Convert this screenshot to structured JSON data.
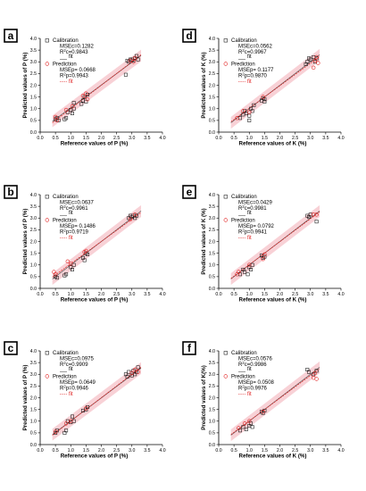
{
  "chart_data": [
    {
      "type": "scatter",
      "panel_label": "a",
      "xlabel": "Reference values of P (%)",
      "ylabel": "Predicted values of P (%)",
      "xlim": [
        0,
        4
      ],
      "ylim": [
        0,
        4
      ],
      "xticks": [
        "0.0",
        "0.5",
        "1.0",
        "1.5",
        "2.0",
        "2.5",
        "3.0",
        "3.5",
        "4.0"
      ],
      "yticks": [
        "0.0",
        "0.5",
        "1.0",
        "1.5",
        "2.0",
        "2.5",
        "3.0",
        "3.5",
        "4.0"
      ],
      "legend_position": "top-left",
      "legend": {
        "calibration": "Calibration",
        "prediction": "Prediction",
        "fit": "fit",
        "mse_c": "MSEc=0.1282",
        "r2_c": "R²c=0.9843",
        "mse_p": "MSEp= 0.0668",
        "r2_p": "R²p=0.9943"
      },
      "fit_calibration": {
        "slope": 0.97,
        "intercept": 0.07
      },
      "fit_prediction": {
        "slope": 1.0,
        "intercept": 0.0
      },
      "band_halfwidth": 0.25,
      "calibration": [
        [
          0.5,
          0.55
        ],
        [
          0.55,
          0.6
        ],
        [
          0.6,
          0.5
        ],
        [
          0.8,
          0.55
        ],
        [
          0.85,
          0.6
        ],
        [
          0.9,
          0.85
        ],
        [
          1.0,
          0.95
        ],
        [
          1.05,
          0.8
        ],
        [
          1.1,
          1.0
        ],
        [
          1.1,
          1.25
        ],
        [
          1.35,
          1.2
        ],
        [
          1.4,
          1.35
        ],
        [
          1.45,
          1.5
        ],
        [
          1.5,
          1.3
        ],
        [
          1.55,
          1.6
        ],
        [
          2.8,
          2.45
        ],
        [
          2.85,
          3.05
        ],
        [
          2.9,
          3.0
        ],
        [
          2.95,
          3.1
        ],
        [
          3.0,
          3.1
        ],
        [
          3.05,
          3.05
        ],
        [
          3.1,
          3.15
        ],
        [
          3.15,
          3.25
        ],
        [
          3.2,
          3.1
        ]
      ],
      "prediction": [
        [
          0.5,
          0.65
        ],
        [
          0.55,
          0.5
        ],
        [
          0.85,
          0.95
        ],
        [
          1.05,
          1.1
        ],
        [
          1.4,
          1.55
        ],
        [
          1.5,
          1.65
        ],
        [
          1.55,
          1.4
        ],
        [
          2.95,
          3.05
        ],
        [
          3.05,
          3.0
        ],
        [
          3.1,
          3.15
        ]
      ]
    },
    {
      "type": "scatter",
      "panel_label": "d",
      "xlabel": "Reference values of K (%)",
      "ylabel": "Predicted values of K (%)",
      "xlim": [
        0,
        4
      ],
      "ylim": [
        0,
        4
      ],
      "xticks": [
        "0.0",
        "0.5",
        "1.0",
        "1.5",
        "2.0",
        "2.5",
        "3.0",
        "3.5",
        "4.0"
      ],
      "yticks": [
        "0.0",
        "0.5",
        "1.0",
        "1.5",
        "2.0",
        "2.5",
        "3.0",
        "3.5",
        "4.0"
      ],
      "legend_position": "top-left",
      "legend": {
        "calibration": "Calibration",
        "prediction": "Prediction",
        "fit": "fit",
        "mse_c": "MSEc=0.0562",
        "r2_c": "R²c=0.9967",
        "mse_p": "MSEp= 0.1177",
        "r2_p": "R²p=0.9870"
      },
      "fit_calibration": {
        "slope": 1.0,
        "intercept": 0.0
      },
      "fit_prediction": {
        "slope": 0.96,
        "intercept": 0.06
      },
      "band_halfwidth": 0.25,
      "calibration": [
        [
          0.7,
          0.6
        ],
        [
          0.8,
          0.75
        ],
        [
          0.85,
          0.9
        ],
        [
          0.9,
          0.8
        ],
        [
          1.0,
          0.5
        ],
        [
          1.0,
          0.7
        ],
        [
          1.05,
          1.0
        ],
        [
          1.1,
          0.9
        ],
        [
          1.15,
          1.15
        ],
        [
          1.4,
          1.35
        ],
        [
          1.45,
          1.45
        ],
        [
          1.5,
          1.4
        ],
        [
          1.5,
          1.3
        ],
        [
          2.85,
          2.9
        ],
        [
          2.9,
          3.0
        ],
        [
          2.95,
          3.15
        ],
        [
          3.0,
          3.1
        ],
        [
          3.1,
          3.2
        ],
        [
          3.15,
          3.0
        ],
        [
          3.2,
          3.15
        ]
      ],
      "prediction": [
        [
          0.6,
          0.6
        ],
        [
          0.8,
          0.9
        ],
        [
          1.0,
          0.85
        ],
        [
          1.45,
          1.5
        ],
        [
          3.1,
          2.75
        ],
        [
          3.15,
          3.05
        ],
        [
          3.2,
          3.2
        ],
        [
          3.25,
          2.95
        ]
      ]
    },
    {
      "type": "scatter",
      "panel_label": "b",
      "xlabel": "Reference values of P (%)",
      "ylabel": "Predicted values of P (%)",
      "xlim": [
        0,
        4
      ],
      "ylim": [
        0,
        4
      ],
      "xticks": [
        "0.0",
        "0.5",
        "1.0",
        "1.5",
        "2.0",
        "2.5",
        "3.0",
        "3.5",
        "4.0"
      ],
      "yticks": [
        "0.0",
        "0.5",
        "1.0",
        "1.5",
        "2.0",
        "2.5",
        "3.0",
        "3.5",
        "4.0"
      ],
      "legend_position": "top-left",
      "legend": {
        "calibration": "Calibration",
        "prediction": "Prediction",
        "fit": "fit",
        "mse_c": "MSEc=0.0637",
        "r2_c": "R²c=0.9961",
        "mse_p": "MSEp= 0.1486",
        "r2_p": "R²p=0.9719"
      },
      "fit_calibration": {
        "slope": 1.0,
        "intercept": 0.0
      },
      "fit_prediction": {
        "slope": 0.95,
        "intercept": 0.1
      },
      "band_halfwidth": 0.25,
      "calibration": [
        [
          0.5,
          0.5
        ],
        [
          0.55,
          0.45
        ],
        [
          0.8,
          0.55
        ],
        [
          0.85,
          0.6
        ],
        [
          1.0,
          0.9
        ],
        [
          1.05,
          0.8
        ],
        [
          1.1,
          1.0
        ],
        [
          1.4,
          1.3
        ],
        [
          1.45,
          1.2
        ],
        [
          1.5,
          1.5
        ],
        [
          1.55,
          1.45
        ],
        [
          2.9,
          3.0
        ],
        [
          2.95,
          3.1
        ],
        [
          3.0,
          3.05
        ],
        [
          3.05,
          3.1
        ],
        [
          3.1,
          3.0
        ],
        [
          3.15,
          3.1
        ]
      ],
      "prediction": [
        [
          0.45,
          0.7
        ],
        [
          0.5,
          0.6
        ],
        [
          0.9,
          1.15
        ],
        [
          1.0,
          1.05
        ],
        [
          1.45,
          1.55
        ],
        [
          1.5,
          1.6
        ],
        [
          2.95,
          2.95
        ],
        [
          3.1,
          3.15
        ]
      ]
    },
    {
      "type": "scatter",
      "panel_label": "e",
      "xlabel": "Reference values of K (%)",
      "ylabel": "Predicted values of K (%)",
      "xlim": [
        0,
        4
      ],
      "ylim": [
        0,
        4
      ],
      "xticks": [
        "0.0",
        "0.5",
        "1.0",
        "1.5",
        "2.0",
        "2.5",
        "3.0",
        "3.5",
        "4.0"
      ],
      "yticks": [
        "0.0",
        "0.5",
        "1.0",
        "1.5",
        "2.0",
        "2.5",
        "3.0",
        "3.5",
        "4.0"
      ],
      "legend_position": "top-left",
      "legend": {
        "calibration": "Calibration",
        "prediction": "Prediction",
        "fit": "fit",
        "mse_c": "MSEc=0.0429",
        "r2_c": "R²c=0.9981",
        "mse_p": "MSEp= 0.0792",
        "r2_p": "R²p=0.9941"
      },
      "fit_calibration": {
        "slope": 1.0,
        "intercept": 0.0
      },
      "fit_prediction": {
        "slope": 0.98,
        "intercept": 0.03
      },
      "band_halfwidth": 0.25,
      "calibration": [
        [
          0.7,
          0.6
        ],
        [
          0.8,
          0.8
        ],
        [
          0.85,
          0.7
        ],
        [
          0.95,
          0.6
        ],
        [
          1.0,
          0.9
        ],
        [
          1.05,
          0.8
        ],
        [
          1.1,
          1.0
        ],
        [
          1.4,
          1.4
        ],
        [
          1.45,
          1.3
        ],
        [
          1.5,
          1.35
        ],
        [
          2.9,
          3.1
        ],
        [
          2.95,
          3.05
        ],
        [
          3.0,
          3.15
        ],
        [
          3.2,
          2.85
        ]
      ],
      "prediction": [
        [
          0.6,
          0.6
        ],
        [
          0.65,
          0.7
        ],
        [
          1.0,
          1.0
        ],
        [
          1.45,
          1.25
        ],
        [
          1.5,
          1.45
        ],
        [
          3.1,
          3.15
        ],
        [
          3.2,
          3.15
        ]
      ]
    },
    {
      "type": "scatter",
      "panel_label": "c",
      "xlabel": "Reference values of P (%)",
      "ylabel": "Predicted values of P (%)",
      "xlim": [
        0,
        4
      ],
      "ylim": [
        0,
        4
      ],
      "xticks": [
        "0.0",
        "0.5",
        "1.0",
        "1.5",
        "2.0",
        "2.5",
        "3.0",
        "3.5",
        "4.0"
      ],
      "yticks": [
        "0.0",
        "0.5",
        "1.0",
        "1.5",
        "2.0",
        "2.5",
        "3.0",
        "3.5",
        "4.0"
      ],
      "legend_position": "top-left",
      "legend": {
        "calibration": "Calibration",
        "prediction": "Prediction",
        "fit": "fit",
        "mse_c": "MSEc=0.0975",
        "r2_c": "R²c=0.9909",
        "mse_p": "MSEp= 0.0649",
        "r2_p": "R²p=0.9946"
      },
      "fit_calibration": {
        "slope": 0.98,
        "intercept": 0.03
      },
      "fit_prediction": {
        "slope": 1.0,
        "intercept": 0.0
      },
      "band_halfwidth": 0.25,
      "calibration": [
        [
          0.5,
          0.5
        ],
        [
          0.55,
          0.6
        ],
        [
          0.8,
          0.5
        ],
        [
          0.85,
          0.6
        ],
        [
          0.9,
          1.0
        ],
        [
          1.0,
          0.95
        ],
        [
          1.05,
          1.2
        ],
        [
          1.1,
          1.0
        ],
        [
          1.4,
          1.45
        ],
        [
          1.5,
          1.5
        ],
        [
          1.55,
          1.6
        ],
        [
          2.8,
          3.0
        ],
        [
          2.85,
          2.9
        ],
        [
          2.9,
          3.1
        ],
        [
          3.0,
          2.95
        ],
        [
          3.05,
          3.15
        ],
        [
          3.1,
          3.0
        ],
        [
          3.15,
          3.1
        ],
        [
          3.2,
          3.3
        ]
      ],
      "prediction": [
        [
          0.5,
          0.55
        ],
        [
          0.85,
          0.9
        ],
        [
          1.0,
          1.0
        ],
        [
          1.5,
          1.55
        ],
        [
          3.0,
          3.05
        ],
        [
          3.1,
          3.2
        ],
        [
          3.2,
          3.1
        ]
      ]
    },
    {
      "type": "scatter",
      "panel_label": "f",
      "xlabel": "Reference values of K (%)",
      "ylabel": "Predicted values of K(%)",
      "xlim": [
        0,
        4
      ],
      "ylim": [
        0,
        4
      ],
      "xticks": [
        "0.0",
        "0.5",
        "1.0",
        "1.5",
        "2.0",
        "2.5",
        "3.0",
        "3.5",
        "4.0"
      ],
      "yticks": [
        "0.0",
        "0.5",
        "1.0",
        "1.5",
        "2.0",
        "2.5",
        "3.0",
        "3.5",
        "4.0"
      ],
      "legend_position": "top-left",
      "legend": {
        "calibration": "Calibration",
        "prediction": "Prediction",
        "fit": "fit",
        "mse_c": "MSEc=0.0576",
        "r2_c": "R²c=0.9986",
        "mse_p": "MSEp= 0.0508",
        "r2_p": "R²p=0.9976"
      },
      "fit_calibration": {
        "slope": 1.0,
        "intercept": 0.0
      },
      "fit_prediction": {
        "slope": 0.97,
        "intercept": 0.04
      },
      "band_halfwidth": 0.25,
      "calibration": [
        [
          0.7,
          0.6
        ],
        [
          0.8,
          0.75
        ],
        [
          0.9,
          0.65
        ],
        [
          1.0,
          0.8
        ],
        [
          1.05,
          0.9
        ],
        [
          1.1,
          0.75
        ],
        [
          1.4,
          1.4
        ],
        [
          1.45,
          1.35
        ],
        [
          1.5,
          1.45
        ],
        [
          2.9,
          3.2
        ],
        [
          2.95,
          3.1
        ],
        [
          3.1,
          3.0
        ],
        [
          3.2,
          3.15
        ]
      ],
      "prediction": [
        [
          0.65,
          0.7
        ],
        [
          0.85,
          0.9
        ],
        [
          1.0,
          1.0
        ],
        [
          1.45,
          1.4
        ],
        [
          3.1,
          2.85
        ],
        [
          3.15,
          3.05
        ],
        [
          3.2,
          2.8
        ]
      ]
    }
  ],
  "colors": {
    "calibration_marker": "#111111",
    "prediction_marker": "#e02020",
    "calibration_fit": "#555555",
    "prediction_fit": "#e02020",
    "confidence_band": "#f5c2c8",
    "text": "#000000"
  }
}
